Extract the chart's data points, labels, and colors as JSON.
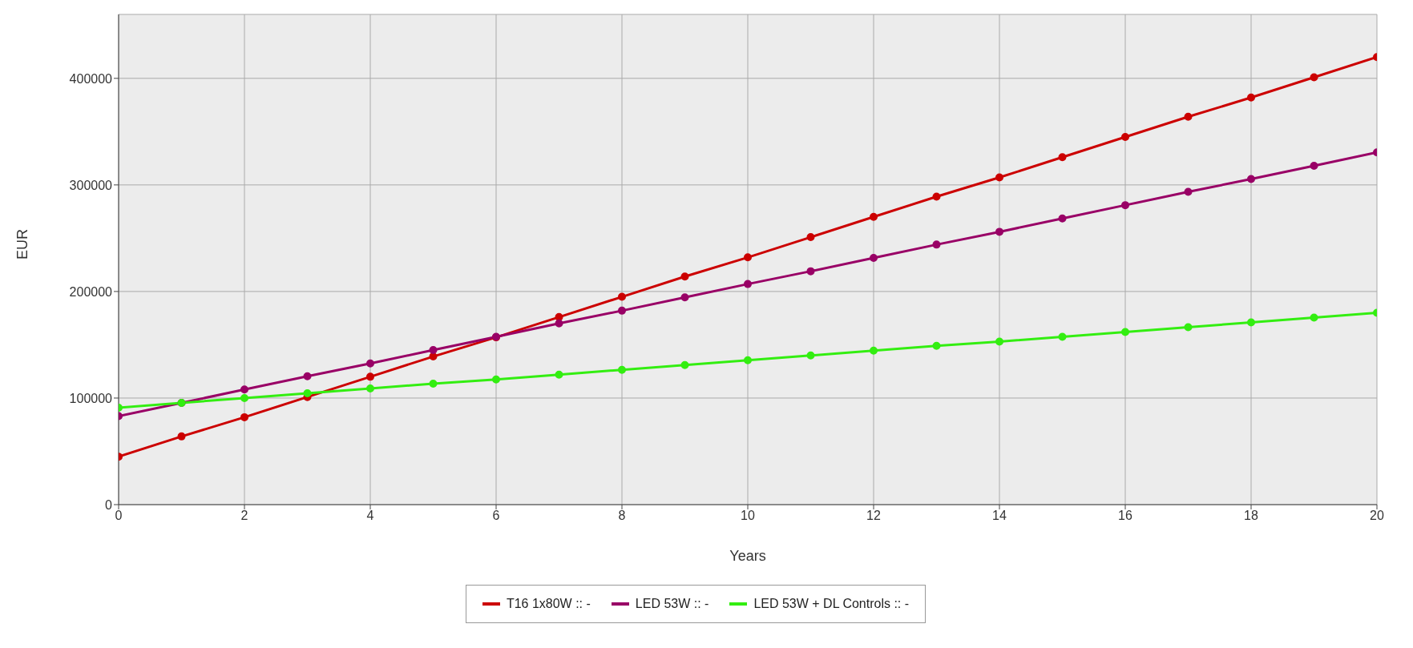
{
  "chart_data": {
    "type": "line",
    "xlabel": "Years",
    "ylabel": "EUR",
    "x": [
      0,
      1,
      2,
      3,
      4,
      5,
      6,
      7,
      8,
      9,
      10,
      11,
      12,
      13,
      14,
      15,
      16,
      17,
      18,
      19,
      20
    ],
    "series": [
      {
        "name": "T16 1x80W :: -",
        "color": "#cc0000",
        "values": [
          45000,
          64000,
          82000,
          101000,
          120000,
          139000,
          157000,
          176000,
          195000,
          214000,
          232000,
          251000,
          270000,
          289000,
          307000,
          326000,
          345000,
          364000,
          382000,
          401000,
          420000
        ]
      },
      {
        "name": "LED 53W :: -",
        "color": "#990066",
        "values": [
          83000,
          95500,
          108000,
          120500,
          132500,
          145000,
          157500,
          170000,
          182000,
          194500,
          207000,
          219000,
          231500,
          244000,
          256000,
          268500,
          281000,
          293500,
          305500,
          318000,
          330500
        ]
      },
      {
        "name": "LED 53W + DL Controls :: -",
        "color": "#33ee11",
        "values": [
          91000,
          95500,
          100000,
          104500,
          109000,
          113500,
          117500,
          122000,
          126500,
          131000,
          135500,
          140000,
          144500,
          149000,
          153000,
          157500,
          162000,
          166500,
          171000,
          175500,
          180000
        ]
      }
    ],
    "xlim": [
      0,
      20
    ],
    "xticks": [
      0,
      2,
      4,
      6,
      8,
      10,
      12,
      14,
      16,
      18,
      20
    ],
    "ylim": [
      0,
      460000
    ],
    "yticks": [
      0,
      100000,
      200000,
      300000,
      400000
    ],
    "grid": true,
    "legend": "bottom",
    "marker": "circle",
    "line_style": "solid"
  }
}
